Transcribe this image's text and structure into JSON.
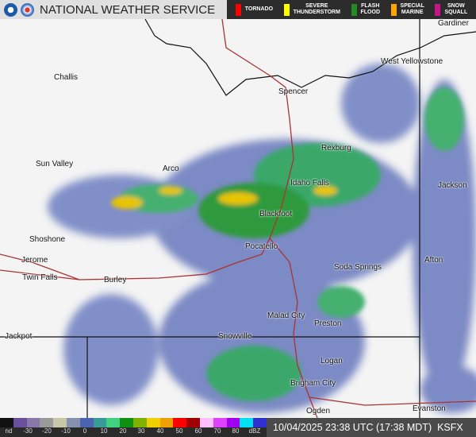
{
  "header": {
    "title": "NATIONAL WEATHER SERVICE",
    "logos": [
      "noaa-logo",
      "nws-logo"
    ],
    "legend": [
      {
        "label": "TORNADO",
        "color": "#ff0000"
      },
      {
        "label": "SEVERE\nTHUNDERSTORM",
        "color": "#ffff00"
      },
      {
        "label": "FLASH\nFLOOD",
        "color": "#228b22"
      },
      {
        "label": "SPECIAL\nMARINE",
        "color": "#ffa500"
      },
      {
        "label": "SNOW\nSQUALL",
        "color": "#c71585"
      }
    ]
  },
  "map": {
    "cities": [
      "Gardiner",
      "West Yellowstone",
      "Challis",
      "Spencer",
      "Rexburg",
      "Sun Valley",
      "Arco",
      "Idaho Falls",
      "Jackson",
      "Blackfoot",
      "Shoshone",
      "Pocatello",
      "Jerome",
      "Afton",
      "Twin Falls",
      "Burley",
      "Soda Springs",
      "Malad City",
      "Preston",
      "Jackpot",
      "Snowville",
      "Logan",
      "Brigham City",
      "Ogden",
      "Evanston"
    ]
  },
  "colorbar": {
    "labels": [
      "nd",
      "-30",
      "-20",
      "-10",
      "0",
      "10",
      "20",
      "30",
      "40",
      "50",
      "60",
      "70",
      "80",
      "dBZ"
    ]
  },
  "status": {
    "timestamp": "10/04/2025 23:38 UTC (17:38 MDT)",
    "station": "KSFX"
  }
}
